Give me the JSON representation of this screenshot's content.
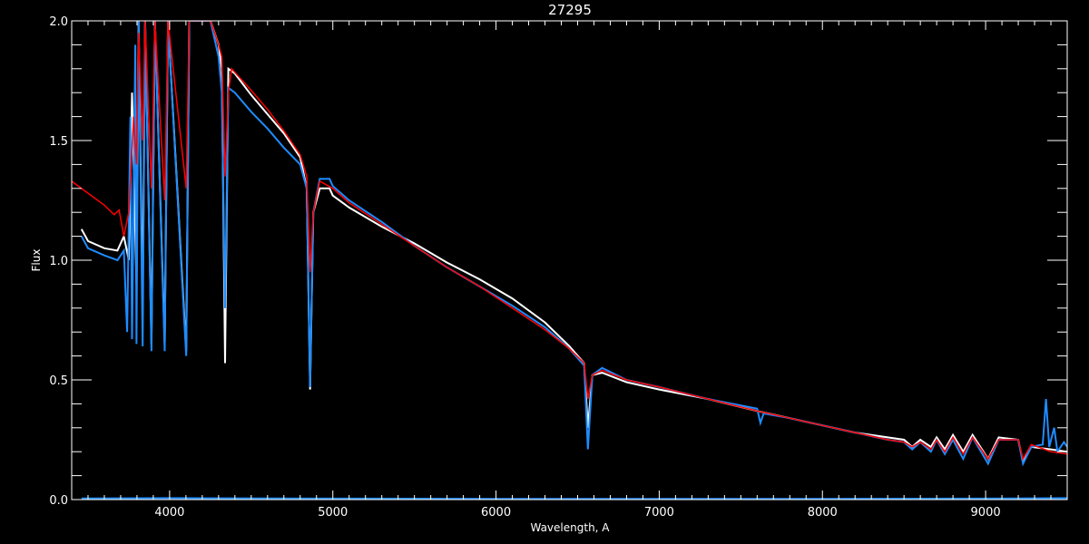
{
  "chart_data": {
    "type": "line",
    "title": "27295",
    "xlabel": "Wavelength, A",
    "ylabel": "Flux",
    "xlim": [
      3400,
      9500
    ],
    "ylim": [
      0.0,
      2.0
    ],
    "x_ticks": [
      4000,
      5000,
      6000,
      7000,
      8000,
      9000
    ],
    "x_tick_labels": [
      "4000",
      "5000",
      "6000",
      "7000",
      "8000",
      "9000"
    ],
    "y_ticks": [
      0.0,
      0.5,
      1.0,
      1.5,
      2.0
    ],
    "y_tick_labels": [
      "0.0",
      "0.5",
      "1.0",
      "1.5",
      "2.0"
    ],
    "x_minor_step": 100,
    "y_minor_step": 0.1,
    "grid": false,
    "colors": {
      "background": "#000000",
      "axes": "#ffffff",
      "observed_white": "#ffffff",
      "observed_blue": "#1e8cff",
      "model": "#ff0000"
    },
    "series": [
      {
        "color": "#ffffff",
        "points": [
          [
            3460,
            1.13
          ],
          [
            3500,
            1.08
          ],
          [
            3600,
            1.05
          ],
          [
            3680,
            1.04
          ],
          [
            3720,
            1.1
          ],
          [
            3750,
            1.0
          ],
          [
            3770,
            1.7
          ],
          [
            3797,
            0.9
          ],
          [
            3810,
            2.0
          ],
          [
            3835,
            0.8
          ],
          [
            3850,
            2.0
          ],
          [
            3889,
            0.65
          ],
          [
            3910,
            2.0
          ],
          [
            3970,
            0.65
          ],
          [
            3990,
            2.0
          ],
          [
            4102,
            0.62
          ],
          [
            4120,
            2.0
          ],
          [
            4250,
            2.0
          ],
          [
            4300,
            1.9
          ],
          [
            4320,
            1.8
          ],
          [
            4340,
            0.57
          ],
          [
            4360,
            1.8
          ],
          [
            4400,
            1.78
          ],
          [
            4500,
            1.69
          ],
          [
            4600,
            1.61
          ],
          [
            4700,
            1.53
          ],
          [
            4800,
            1.43
          ],
          [
            4840,
            1.3
          ],
          [
            4861,
            0.46
          ],
          [
            4880,
            1.2
          ],
          [
            4920,
            1.3
          ],
          [
            4980,
            1.3
          ],
          [
            5000,
            1.27
          ],
          [
            5100,
            1.22
          ],
          [
            5300,
            1.14
          ],
          [
            5500,
            1.07
          ],
          [
            5700,
            0.99
          ],
          [
            5900,
            0.92
          ],
          [
            6100,
            0.84
          ],
          [
            6300,
            0.74
          ],
          [
            6450,
            0.64
          ],
          [
            6540,
            0.57
          ],
          [
            6563,
            0.3
          ],
          [
            6590,
            0.52
          ],
          [
            6650,
            0.53
          ],
          [
            6800,
            0.49
          ],
          [
            7000,
            0.46
          ],
          [
            7300,
            0.42
          ],
          [
            7600,
            0.37
          ],
          [
            7800,
            0.34
          ],
          [
            8000,
            0.31
          ],
          [
            8200,
            0.28
          ],
          [
            8400,
            0.26
          ],
          [
            8500,
            0.25
          ],
          [
            8550,
            0.22
          ],
          [
            8600,
            0.25
          ],
          [
            8665,
            0.22
          ],
          [
            8700,
            0.26
          ],
          [
            8750,
            0.21
          ],
          [
            8800,
            0.27
          ],
          [
            8863,
            0.2
          ],
          [
            8920,
            0.27
          ],
          [
            9015,
            0.17
          ],
          [
            9080,
            0.26
          ],
          [
            9200,
            0.25
          ],
          [
            9229,
            0.16
          ],
          [
            9280,
            0.22
          ],
          [
            9400,
            0.21
          ],
          [
            9500,
            0.2
          ]
        ]
      },
      {
        "color": "#1e8cff",
        "points": [
          [
            3460,
            1.1
          ],
          [
            3500,
            1.05
          ],
          [
            3600,
            1.02
          ],
          [
            3680,
            1.0
          ],
          [
            3720,
            1.04
          ],
          [
            3740,
            0.7
          ],
          [
            3760,
            1.6
          ],
          [
            3770,
            0.67
          ],
          [
            3790,
            1.9
          ],
          [
            3797,
            0.65
          ],
          [
            3810,
            2.0
          ],
          [
            3835,
            0.64
          ],
          [
            3850,
            2.0
          ],
          [
            3889,
            0.62
          ],
          [
            3910,
            2.0
          ],
          [
            3970,
            0.62
          ],
          [
            3990,
            2.0
          ],
          [
            4102,
            0.6
          ],
          [
            4120,
            2.0
          ],
          [
            4250,
            2.0
          ],
          [
            4300,
            1.85
          ],
          [
            4320,
            1.7
          ],
          [
            4340,
            0.8
          ],
          [
            4360,
            1.72
          ],
          [
            4400,
            1.7
          ],
          [
            4500,
            1.62
          ],
          [
            4600,
            1.55
          ],
          [
            4700,
            1.47
          ],
          [
            4800,
            1.4
          ],
          [
            4840,
            1.3
          ],
          [
            4861,
            0.47
          ],
          [
            4880,
            1.2
          ],
          [
            4920,
            1.34
          ],
          [
            4980,
            1.34
          ],
          [
            5000,
            1.31
          ],
          [
            5100,
            1.25
          ],
          [
            5300,
            1.16
          ],
          [
            5500,
            1.06
          ],
          [
            5700,
            0.97
          ],
          [
            5900,
            0.89
          ],
          [
            6100,
            0.81
          ],
          [
            6300,
            0.72
          ],
          [
            6450,
            0.63
          ],
          [
            6540,
            0.56
          ],
          [
            6563,
            0.21
          ],
          [
            6590,
            0.52
          ],
          [
            6650,
            0.55
          ],
          [
            6800,
            0.5
          ],
          [
            7000,
            0.47
          ],
          [
            7300,
            0.42
          ],
          [
            7600,
            0.38
          ],
          [
            7620,
            0.32
          ],
          [
            7640,
            0.36
          ],
          [
            7800,
            0.34
          ],
          [
            8000,
            0.31
          ],
          [
            8200,
            0.28
          ],
          [
            8400,
            0.25
          ],
          [
            8500,
            0.24
          ],
          [
            8550,
            0.21
          ],
          [
            8600,
            0.24
          ],
          [
            8665,
            0.2
          ],
          [
            8700,
            0.25
          ],
          [
            8750,
            0.19
          ],
          [
            8800,
            0.25
          ],
          [
            8863,
            0.17
          ],
          [
            8920,
            0.26
          ],
          [
            9015,
            0.15
          ],
          [
            9080,
            0.25
          ],
          [
            9200,
            0.25
          ],
          [
            9229,
            0.15
          ],
          [
            9280,
            0.22
          ],
          [
            9350,
            0.23
          ],
          [
            9370,
            0.42
          ],
          [
            9390,
            0.22
          ],
          [
            9420,
            0.3
          ],
          [
            9440,
            0.2
          ],
          [
            9480,
            0.24
          ],
          [
            9500,
            0.22
          ]
        ]
      },
      {
        "color": "#ff0000",
        "points": [
          [
            3400,
            1.33
          ],
          [
            3500,
            1.28
          ],
          [
            3600,
            1.23
          ],
          [
            3660,
            1.19
          ],
          [
            3690,
            1.21
          ],
          [
            3720,
            1.1
          ],
          [
            3750,
            1.2
          ],
          [
            3780,
            1.6
          ],
          [
            3797,
            1.4
          ],
          [
            3810,
            1.95
          ],
          [
            3835,
            1.5
          ],
          [
            3850,
            2.0
          ],
          [
            3889,
            1.3
          ],
          [
            3910,
            2.0
          ],
          [
            3970,
            1.25
          ],
          [
            3990,
            2.0
          ],
          [
            4102,
            1.3
          ],
          [
            4120,
            2.0
          ],
          [
            4250,
            2.0
          ],
          [
            4300,
            1.9
          ],
          [
            4320,
            1.85
          ],
          [
            4340,
            1.35
          ],
          [
            4360,
            1.7
          ],
          [
            4380,
            1.8
          ],
          [
            4500,
            1.71
          ],
          [
            4600,
            1.63
          ],
          [
            4700,
            1.54
          ],
          [
            4800,
            1.44
          ],
          [
            4840,
            1.35
          ],
          [
            4861,
            0.95
          ],
          [
            4880,
            1.2
          ],
          [
            4920,
            1.33
          ],
          [
            5000,
            1.3
          ],
          [
            5100,
            1.24
          ],
          [
            5300,
            1.15
          ],
          [
            5500,
            1.06
          ],
          [
            5700,
            0.97
          ],
          [
            5900,
            0.89
          ],
          [
            6100,
            0.8
          ],
          [
            6300,
            0.71
          ],
          [
            6450,
            0.63
          ],
          [
            6540,
            0.57
          ],
          [
            6563,
            0.42
          ],
          [
            6590,
            0.52
          ],
          [
            6650,
            0.54
          ],
          [
            6800,
            0.5
          ],
          [
            7000,
            0.47
          ],
          [
            7300,
            0.42
          ],
          [
            7600,
            0.37
          ],
          [
            7800,
            0.34
          ],
          [
            8000,
            0.31
          ],
          [
            8200,
            0.28
          ],
          [
            8400,
            0.25
          ],
          [
            8500,
            0.24
          ],
          [
            8550,
            0.22
          ],
          [
            8600,
            0.24
          ],
          [
            8665,
            0.21
          ],
          [
            8700,
            0.25
          ],
          [
            8750,
            0.2
          ],
          [
            8800,
            0.26
          ],
          [
            8863,
            0.19
          ],
          [
            8920,
            0.26
          ],
          [
            9015,
            0.17
          ],
          [
            9080,
            0.25
          ],
          [
            9200,
            0.25
          ],
          [
            9229,
            0.17
          ],
          [
            9280,
            0.23
          ],
          [
            9400,
            0.2
          ],
          [
            9500,
            0.19
          ]
        ]
      },
      {
        "color": "#1e8cff",
        "points": [
          [
            3460,
            0.005
          ],
          [
            4000,
            0.006
          ],
          [
            5000,
            0.004
          ],
          [
            6000,
            0.003
          ],
          [
            7000,
            0.003
          ],
          [
            8000,
            0.003
          ],
          [
            9000,
            0.004
          ],
          [
            9500,
            0.006
          ]
        ]
      }
    ]
  }
}
